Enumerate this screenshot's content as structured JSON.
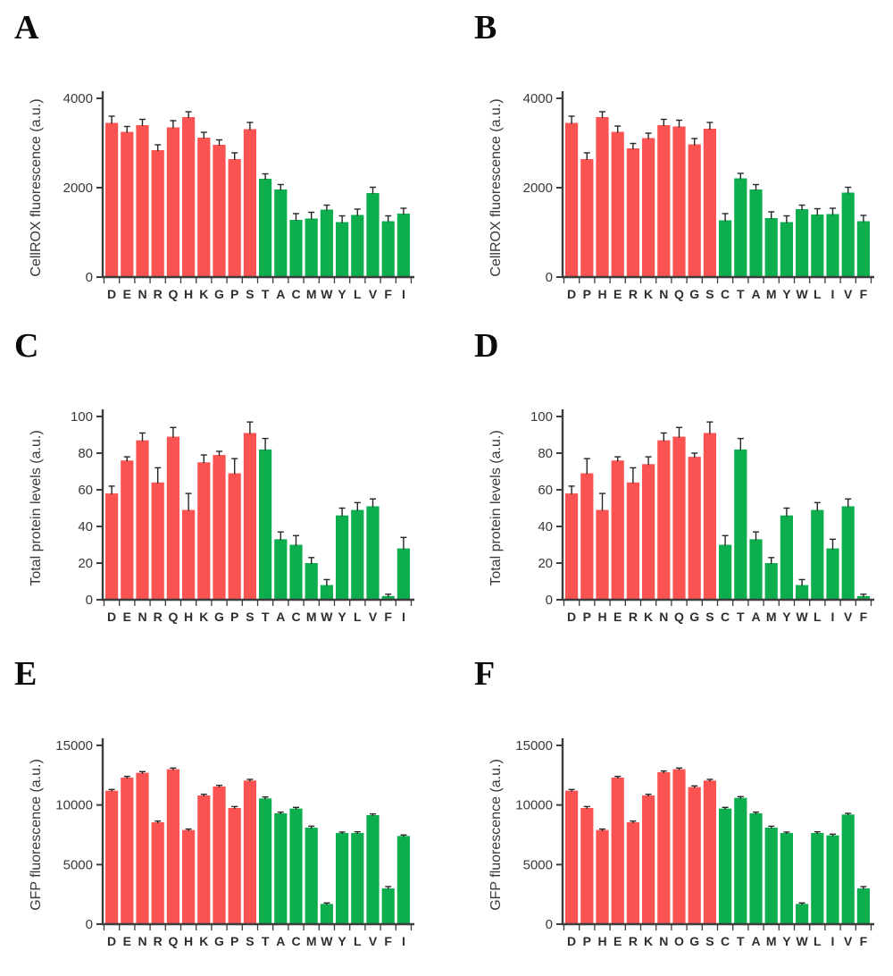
{
  "colors": {
    "red": "#FB5252",
    "green": "#0DAE4E",
    "axis": "#3D3D3D",
    "error": "#262626",
    "background": "#FFFFFF"
  },
  "chart_data": [
    {
      "type": "bar",
      "panel_label": "A",
      "ylabel": "CellROX fluorescence (a.u.)",
      "ylim": [
        0,
        4000
      ],
      "yticks": [
        0,
        2000,
        4000
      ],
      "red_count": 10,
      "legend": "first 10 bars red, last 10 bars green",
      "categories": [
        "D",
        "E",
        "N",
        "R",
        "Q",
        "H",
        "K",
        "G",
        "P",
        "S",
        "T",
        "A",
        "C",
        "M",
        "W",
        "Y",
        "L",
        "V",
        "F",
        "I"
      ],
      "values": [
        3450,
        3250,
        3400,
        2840,
        3350,
        3580,
        3120,
        2960,
        2640,
        3310,
        2200,
        1960,
        1280,
        1310,
        1510,
        1230,
        1390,
        1880,
        1250,
        1420
      ],
      "errors": [
        150,
        120,
        130,
        120,
        150,
        120,
        120,
        110,
        140,
        150,
        110,
        110,
        140,
        140,
        100,
        140,
        130,
        130,
        120,
        120
      ]
    },
    {
      "type": "bar",
      "panel_label": "B",
      "ylabel": "CellROX fluorescence (a.u.)",
      "ylim": [
        0,
        4000
      ],
      "yticks": [
        0,
        2000,
        4000
      ],
      "red_count": 10,
      "legend": "first 10 bars red, last 10 bars green",
      "categories": [
        "D",
        "P",
        "H",
        "E",
        "R",
        "K",
        "N",
        "Q",
        "G",
        "S",
        "C",
        "T",
        "A",
        "M",
        "Y",
        "W",
        "L",
        "I",
        "V",
        "F"
      ],
      "values": [
        3450,
        2640,
        3580,
        3250,
        2880,
        3110,
        3400,
        3370,
        2970,
        3320,
        1270,
        2210,
        1960,
        1320,
        1230,
        1520,
        1400,
        1410,
        1890,
        1250
      ],
      "errors": [
        150,
        140,
        120,
        130,
        110,
        110,
        130,
        140,
        130,
        140,
        150,
        110,
        110,
        140,
        140,
        90,
        130,
        130,
        120,
        130
      ]
    },
    {
      "type": "bar",
      "panel_label": "C",
      "ylabel": "Total protein levels (a.u.)",
      "ylim": [
        0,
        100
      ],
      "yticks": [
        0,
        20,
        40,
        60,
        80,
        100
      ],
      "red_count": 10,
      "legend": "first 10 bars red, last 10 bars green",
      "categories": [
        "D",
        "E",
        "N",
        "R",
        "Q",
        "H",
        "K",
        "G",
        "P",
        "S",
        "T",
        "A",
        "C",
        "M",
        "W",
        "Y",
        "L",
        "V",
        "F",
        "I"
      ],
      "values": [
        58,
        76,
        87,
        64,
        89,
        49,
        75,
        79,
        69,
        91,
        82,
        33,
        30,
        20,
        8,
        46,
        49,
        51,
        2,
        28
      ],
      "errors": [
        4,
        2,
        4,
        8,
        5,
        9,
        4,
        2,
        8,
        6,
        6,
        4,
        5,
        3,
        3,
        4,
        4,
        4,
        1,
        6
      ]
    },
    {
      "type": "bar",
      "panel_label": "D",
      "ylabel": "Total protein levels (a.u.)",
      "ylim": [
        0,
        100
      ],
      "yticks": [
        0,
        20,
        40,
        60,
        80,
        100
      ],
      "red_count": 10,
      "legend": "first 10 bars red, last 10 bars green",
      "categories": [
        "D",
        "P",
        "H",
        "E",
        "R",
        "K",
        "N",
        "Q",
        "G",
        "S",
        "C",
        "T",
        "A",
        "M",
        "Y",
        "W",
        "L",
        "I",
        "V",
        "F"
      ],
      "values": [
        58,
        69,
        49,
        76,
        64,
        74,
        87,
        89,
        78,
        91,
        30,
        82,
        33,
        20,
        46,
        8,
        49,
        28,
        51,
        2
      ],
      "errors": [
        4,
        8,
        9,
        2,
        8,
        4,
        4,
        5,
        2,
        6,
        5,
        6,
        4,
        3,
        4,
        3,
        4,
        5,
        4,
        1
      ]
    },
    {
      "type": "bar",
      "panel_label": "E",
      "ylabel": "GFP fluorescence (a.u.)",
      "ylim": [
        0,
        15000
      ],
      "yticks": [
        0,
        5000,
        10000,
        15000
      ],
      "red_count": 10,
      "legend": "first 10 bars red, last 10 bars green",
      "categories": [
        "D",
        "E",
        "N",
        "R",
        "Q",
        "H",
        "K",
        "G",
        "P",
        "S",
        "T",
        "A",
        "C",
        "M",
        "W",
        "Y",
        "L",
        "V",
        "F",
        "I"
      ],
      "values": [
        11200,
        12300,
        12700,
        8550,
        13000,
        7900,
        10800,
        11550,
        9750,
        12050,
        10550,
        9300,
        9700,
        8100,
        1700,
        7650,
        7650,
        9150,
        3000,
        7400
      ],
      "errors": [
        100,
        100,
        100,
        100,
        100,
        80,
        100,
        100,
        120,
        100,
        120,
        100,
        100,
        120,
        80,
        80,
        100,
        100,
        150,
        80
      ]
    },
    {
      "type": "bar",
      "panel_label": "F",
      "ylabel": "GFP fluorescence (a.u.)",
      "ylim": [
        0,
        15000
      ],
      "yticks": [
        0,
        5000,
        10000,
        15000
      ],
      "red_count": 10,
      "legend": "first 10 bars red, last 10 bars green",
      "categories": [
        "D",
        "P",
        "H",
        "E",
        "R",
        "K",
        "N",
        "O",
        "G",
        "S",
        "C",
        "T",
        "A",
        "M",
        "Y",
        "W",
        "L",
        "I",
        "V",
        "F"
      ],
      "values": [
        11200,
        9750,
        7900,
        12300,
        8550,
        10800,
        12750,
        13000,
        11500,
        12050,
        9700,
        10600,
        9300,
        8100,
        7650,
        1700,
        7650,
        7450,
        9200,
        3000
      ],
      "errors": [
        100,
        120,
        80,
        100,
        100,
        100,
        100,
        100,
        100,
        100,
        100,
        100,
        100,
        120,
        80,
        80,
        100,
        100,
        100,
        150
      ]
    }
  ]
}
